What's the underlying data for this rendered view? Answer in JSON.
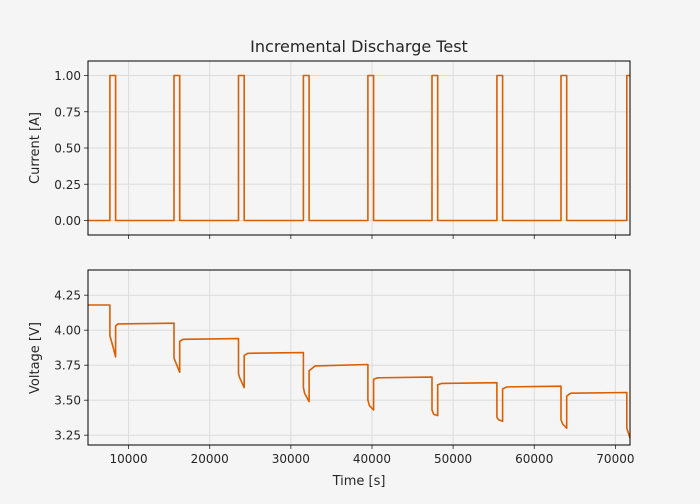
{
  "chart_data": [
    {
      "type": "line",
      "title": "Incremental Discharge Test",
      "xlabel": "",
      "ylabel": "Current [A]",
      "xlim": [
        5000,
        71800
      ],
      "ylim": [
        -0.1,
        1.1
      ],
      "xticks": [
        10000,
        20000,
        30000,
        40000,
        50000,
        60000,
        70000
      ],
      "xtick_labels_visible": false,
      "yticks": [
        0.0,
        0.25,
        0.5,
        0.75,
        1.0
      ],
      "ytick_labels": [
        "0.00",
        "0.25",
        "0.50",
        "0.75",
        "1.00"
      ],
      "grid": true,
      "color": "#d95f02",
      "series": [
        {
          "points": [
            [
              5000,
              0
            ],
            [
              7700,
              0
            ],
            [
              7700,
              1
            ],
            [
              8400,
              1
            ],
            [
              8400,
              0
            ],
            [
              15600,
              0
            ],
            [
              15600,
              1
            ],
            [
              16300,
              1
            ],
            [
              16300,
              0
            ],
            [
              23550,
              0
            ],
            [
              23550,
              1
            ],
            [
              24250,
              1
            ],
            [
              24250,
              0
            ],
            [
              31550,
              0
            ],
            [
              31550,
              1
            ],
            [
              32250,
              1
            ],
            [
              32250,
              0
            ],
            [
              39500,
              0
            ],
            [
              39500,
              1
            ],
            [
              40200,
              1
            ],
            [
              40200,
              0
            ],
            [
              47400,
              0
            ],
            [
              47400,
              1
            ],
            [
              48100,
              1
            ],
            [
              48100,
              0
            ],
            [
              55400,
              0
            ],
            [
              55400,
              1
            ],
            [
              56100,
              1
            ],
            [
              56100,
              0
            ],
            [
              63300,
              0
            ],
            [
              63300,
              1
            ],
            [
              64000,
              1
            ],
            [
              64000,
              0
            ],
            [
              71400,
              0
            ],
            [
              71400,
              1
            ],
            [
              71800,
              1
            ]
          ]
        }
      ]
    },
    {
      "type": "line",
      "title": "",
      "xlabel": "Time [s]",
      "ylabel": "Voltage [V]",
      "xlim": [
        5000,
        71800
      ],
      "ylim": [
        3.18,
        4.43
      ],
      "xticks": [
        10000,
        20000,
        30000,
        40000,
        50000,
        60000,
        70000
      ],
      "xtick_labels": [
        "10000",
        "20000",
        "30000",
        "40000",
        "50000",
        "60000",
        "70000"
      ],
      "yticks": [
        3.25,
        3.5,
        3.75,
        4.0,
        4.25
      ],
      "ytick_labels": [
        "3.25",
        "3.50",
        "3.75",
        "4.00",
        "4.25"
      ],
      "grid": true,
      "color": "#d95f02",
      "series": [
        {
          "points": [
            [
              5000,
              4.18
            ],
            [
              7700,
              4.18
            ],
            [
              7700,
              3.96
            ],
            [
              7900,
              3.92
            ],
            [
              8400,
              3.81
            ],
            [
              8400,
              4.03
            ],
            [
              8700,
              4.045
            ],
            [
              15600,
              4.05
            ],
            [
              15600,
              3.8
            ],
            [
              16300,
              3.7
            ],
            [
              16300,
              3.92
            ],
            [
              16700,
              3.935
            ],
            [
              23550,
              3.94
            ],
            [
              23550,
              3.69
            ],
            [
              23700,
              3.66
            ],
            [
              24250,
              3.59
            ],
            [
              24250,
              3.82
            ],
            [
              24700,
              3.835
            ],
            [
              31550,
              3.84
            ],
            [
              31550,
              3.59
            ],
            [
              31700,
              3.55
            ],
            [
              32250,
              3.49
            ],
            [
              32250,
              3.71
            ],
            [
              33000,
              3.745
            ],
            [
              39500,
              3.755
            ],
            [
              39500,
              3.5
            ],
            [
              39700,
              3.46
            ],
            [
              40200,
              3.43
            ],
            [
              40200,
              3.65
            ],
            [
              40700,
              3.66
            ],
            [
              47400,
              3.665
            ],
            [
              47400,
              3.43
            ],
            [
              47600,
              3.4
            ],
            [
              48100,
              3.39
            ],
            [
              48100,
              3.61
            ],
            [
              48600,
              3.62
            ],
            [
              55400,
              3.625
            ],
            [
              55400,
              3.38
            ],
            [
              55600,
              3.36
            ],
            [
              56100,
              3.35
            ],
            [
              56100,
              3.58
            ],
            [
              56600,
              3.595
            ],
            [
              63300,
              3.6
            ],
            [
              63300,
              3.36
            ],
            [
              63500,
              3.33
            ],
            [
              64000,
              3.3
            ],
            [
              64000,
              3.53
            ],
            [
              64500,
              3.55
            ],
            [
              71400,
              3.555
            ],
            [
              71400,
              3.3
            ],
            [
              71800,
              3.23
            ]
          ]
        }
      ]
    }
  ]
}
